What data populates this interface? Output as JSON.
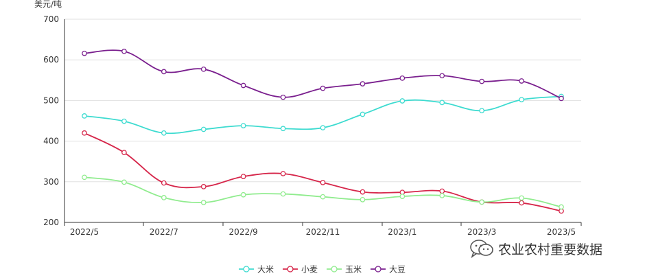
{
  "chart_data": {
    "type": "line",
    "ylabel": "美元/吨",
    "ylim": [
      200,
      700
    ],
    "yticks": [
      200,
      300,
      400,
      500,
      600,
      700
    ],
    "x": [
      "2022/5",
      "2022/6",
      "2022/7",
      "2022/8",
      "2022/9",
      "2022/10",
      "2022/11",
      "2022/12",
      "2023/1",
      "2023/2",
      "2023/3",
      "2023/4",
      "2023/5"
    ],
    "xtick_labels": [
      "2022/5",
      "2022/7",
      "2022/9",
      "2022/11",
      "2023/1",
      "2023/3",
      "2023/5"
    ],
    "grid": true,
    "smooth": true,
    "legend_position": "bottom",
    "series": [
      {
        "name": "大米",
        "color": "#3ddbd0",
        "values": [
          462,
          449,
          420,
          429,
          438,
          431,
          433,
          466,
          499,
          495,
          475,
          502,
          510
        ]
      },
      {
        "name": "小麦",
        "color": "#d6264a",
        "values": [
          420,
          372,
          297,
          288,
          313,
          320,
          298,
          275,
          274,
          277,
          250,
          248,
          228
        ]
      },
      {
        "name": "玉米",
        "color": "#90ec8e",
        "values": [
          311,
          299,
          261,
          249,
          268,
          270,
          263,
          256,
          264,
          266,
          250,
          260,
          238
        ]
      },
      {
        "name": "大豆",
        "color": "#7a1f8e",
        "values": [
          616,
          621,
          571,
          577,
          537,
          508,
          530,
          541,
          555,
          561,
          547,
          548,
          505
        ]
      }
    ]
  },
  "watermark": {
    "text": "农业农村重要数据",
    "icon": "wechat-icon"
  }
}
